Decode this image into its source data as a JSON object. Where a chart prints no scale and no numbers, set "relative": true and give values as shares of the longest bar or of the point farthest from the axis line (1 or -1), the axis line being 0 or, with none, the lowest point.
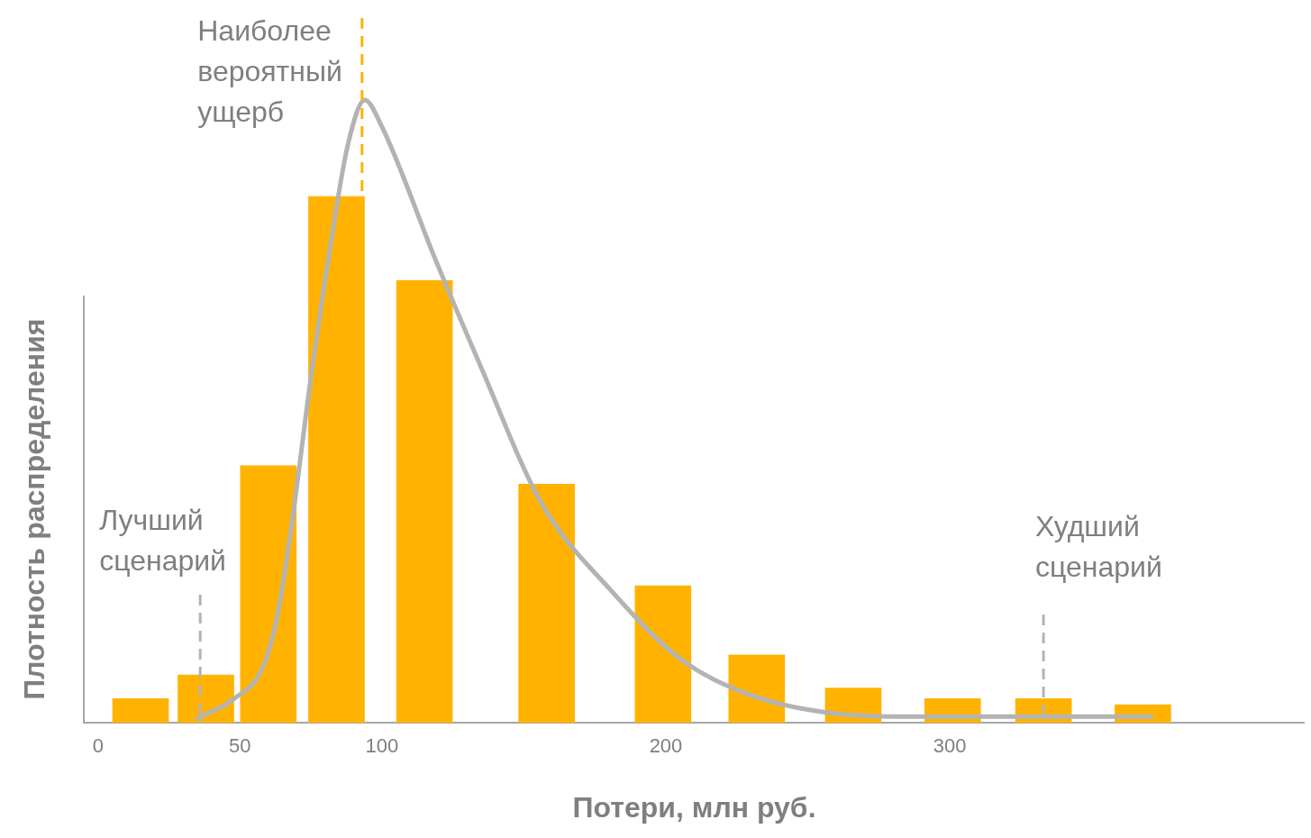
{
  "chart_data": {
    "type": "bar",
    "xlabel": "Потери, млн руб.",
    "ylabel": "Плотность распределения",
    "relative": true,
    "tick_labels": "x",
    "grid": false,
    "legend": false,
    "x": [
      15,
      38,
      60,
      84,
      115,
      158,
      199,
      232,
      266,
      301,
      333,
      368
    ],
    "xlim": [
      -5,
      425
    ],
    "xticks": [
      0,
      50,
      100,
      200,
      300
    ],
    "series": [
      {
        "color": "#ffb300",
        "values": [
          0.039,
          0.077,
          0.413,
          0.845,
          0.71,
          0.383,
          0.22,
          0.109,
          0.056,
          0.039,
          0.039,
          0.029
        ]
      },
      {
        "type": "line",
        "color": "#b3b3b3",
        "x": [
          35,
          48,
          58,
          63,
          68,
          75,
          82,
          88,
          94,
          100,
          119,
          135,
          156,
          181,
          205,
          229,
          256,
          290,
          371
        ],
        "values": [
          0.007,
          0.039,
          0.089,
          0.168,
          0.311,
          0.555,
          0.77,
          0.928,
          1,
          0.957,
          0.742,
          0.57,
          0.354,
          0.211,
          0.103,
          0.046,
          0.017,
          0.01,
          0.01
        ]
      }
    ],
    "ref_lines": [
      {
        "axis": "x",
        "value": 93,
        "label": "Наиболее вероятный ущерб",
        "color": "#ffb300",
        "line_style": "dashed"
      },
      {
        "axis": "x",
        "value": 36,
        "label": "Лучший сценарий",
        "color": "#b3b3b3",
        "line_style": "dashed"
      },
      {
        "axis": "x",
        "value": 333,
        "label": "Худший сценарий",
        "color": "#b3b3b3",
        "line_style": "dashed"
      }
    ]
  }
}
